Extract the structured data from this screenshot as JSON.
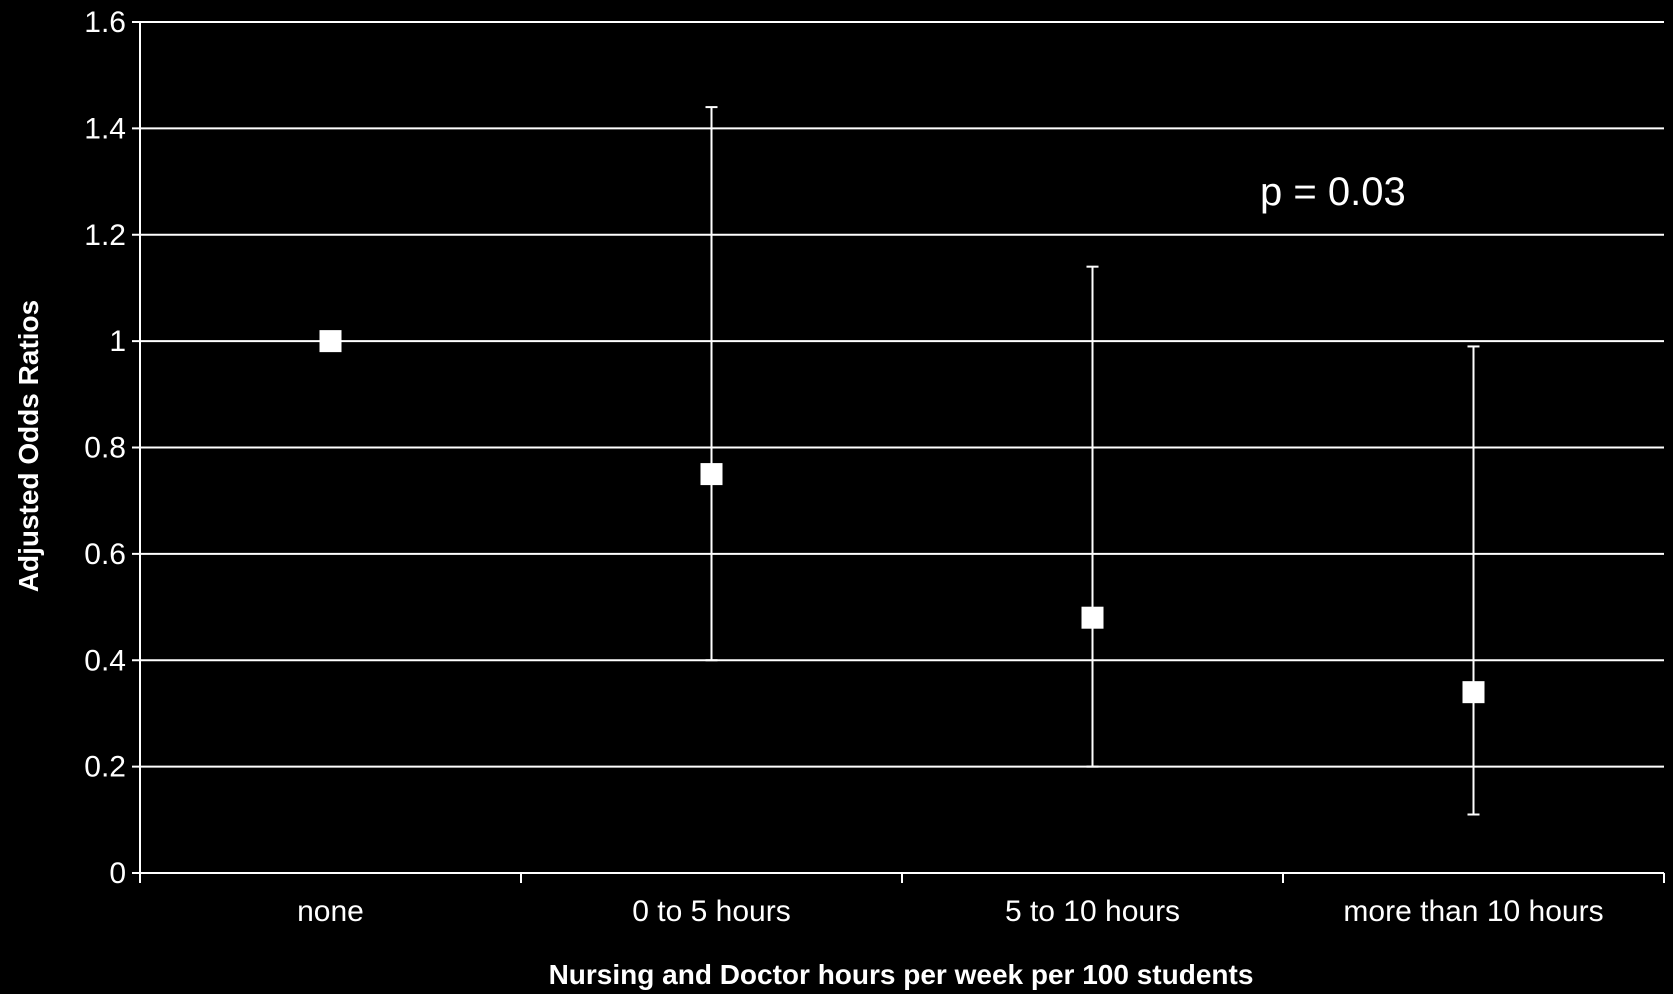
{
  "chart_data": {
    "type": "scatter",
    "title": "",
    "xlabel": "Nursing and Doctor hours per week per 100 students",
    "ylabel": "Adjusted Odds Ratios",
    "categories": [
      "none",
      "0 to 5 hours",
      "5 to 10 hours",
      "more than 10 hours"
    ],
    "series": [
      {
        "values": [
          1.0,
          0.75,
          0.48,
          0.34
        ],
        "error_low": [
          null,
          0.4,
          0.2,
          0.11
        ],
        "error_high": [
          null,
          1.44,
          1.14,
          0.99
        ]
      }
    ],
    "ylim": [
      0,
      1.6
    ],
    "yticks": [
      "0",
      "0.2",
      "0.4",
      "0.6",
      "0.8",
      "1",
      "1.2",
      "1.4",
      "1.6"
    ],
    "grid": true,
    "legend": "none",
    "annotation": "p = 0.03",
    "colors": {
      "background": "#000000",
      "foreground": "#ffffff"
    }
  }
}
